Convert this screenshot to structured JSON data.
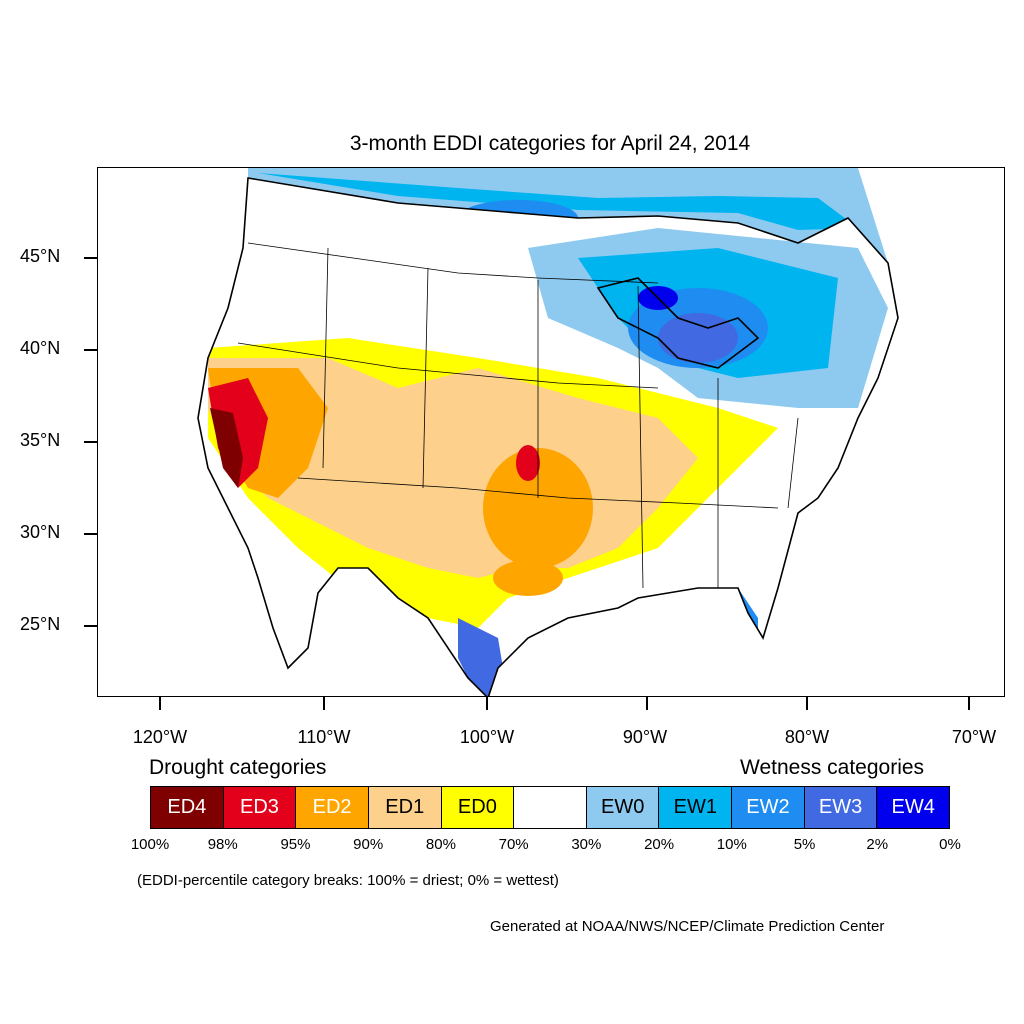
{
  "title": "3-month EDDI categories for April 24, 2014",
  "axes": {
    "lat_labels": [
      "45°N",
      "40°N",
      "35°N",
      "30°N",
      "25°N"
    ],
    "lon_labels": [
      "120°W",
      "110°W",
      "100°W",
      "90°W",
      "80°W",
      "70°W"
    ]
  },
  "legend": {
    "drought_title": "Drought categories",
    "wetness_title": "Wetness categories",
    "categories": [
      {
        "label": "ED4",
        "color": "#7f0000",
        "text_color": "#ffffff"
      },
      {
        "label": "ED3",
        "color": "#e3001b",
        "text_color": "#ffffff"
      },
      {
        "label": "ED2",
        "color": "#ffa500",
        "text_color": "#ffffff"
      },
      {
        "label": "ED1",
        "color": "#fdd18b",
        "text_color": "#000000"
      },
      {
        "label": "ED0",
        "color": "#ffff00",
        "text_color": "#000000"
      },
      {
        "label": "",
        "color": "#ffffff",
        "text_color": "#000000"
      },
      {
        "label": "EW0",
        "color": "#8ecaf0",
        "text_color": "#000000"
      },
      {
        "label": "EW1",
        "color": "#00b4f0",
        "text_color": "#000000"
      },
      {
        "label": "EW2",
        "color": "#1e8cf0",
        "text_color": "#ffffff"
      },
      {
        "label": "EW3",
        "color": "#4169e1",
        "text_color": "#ffffff"
      },
      {
        "label": "EW4",
        "color": "#0000ee",
        "text_color": "#ffffff"
      }
    ],
    "percent_breaks": [
      "100%",
      "98%",
      "95%",
      "90%",
      "80%",
      "70%",
      "30%",
      "20%",
      "10%",
      "5%",
      "2%",
      "0%"
    ]
  },
  "note": "(EDDI-percentile category breaks: 100% = driest; 0% = wettest)",
  "credit": "Generated at NOAA/NWS/NCEP/Climate Prediction Center"
}
